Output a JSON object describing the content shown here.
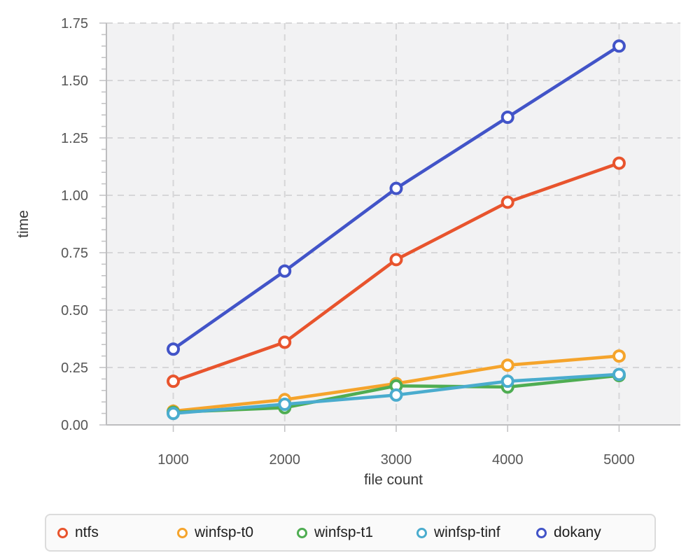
{
  "chart_data": {
    "type": "line",
    "title": "",
    "xlabel": "file count",
    "ylabel": "time",
    "x": [
      1000,
      2000,
      3000,
      4000,
      5000
    ],
    "xtick_labels": [
      "1000",
      "2000",
      "3000",
      "4000",
      "5000"
    ],
    "ytick_labels": [
      "0.00",
      "0.25",
      "0.50",
      "0.75",
      "1.00",
      "1.25",
      "1.50",
      "1.75"
    ],
    "xlim": [
      400,
      5550
    ],
    "ylim": [
      0,
      1.75
    ],
    "y_major_step": 0.25,
    "y_minor_step": 0.05,
    "grid": "dashed",
    "legend_position": "bottom",
    "series": [
      {
        "name": "ntfs",
        "color": "#E8542D",
        "values": [
          0.19,
          0.36,
          0.72,
          0.97,
          1.14
        ]
      },
      {
        "name": "winfsp-t0",
        "color": "#F5A42C",
        "values": [
          0.06,
          0.11,
          0.18,
          0.26,
          0.3
        ]
      },
      {
        "name": "winfsp-t1",
        "color": "#4FAD52",
        "values": [
          0.055,
          0.075,
          0.17,
          0.165,
          0.215
        ]
      },
      {
        "name": "winfsp-tinf",
        "color": "#4AACCE",
        "values": [
          0.05,
          0.09,
          0.13,
          0.19,
          0.22
        ]
      },
      {
        "name": "dokany",
        "color": "#4254C8",
        "values": [
          0.33,
          0.67,
          1.03,
          1.34,
          1.65
        ]
      }
    ]
  },
  "legend": {
    "items": [
      {
        "label": "ntfs",
        "color": "#E8542D"
      },
      {
        "label": "winfsp-t0",
        "color": "#F5A42C"
      },
      {
        "label": "winfsp-t1",
        "color": "#4FAD52"
      },
      {
        "label": "winfsp-tinf",
        "color": "#4AACCE"
      },
      {
        "label": "dokany",
        "color": "#4254C8"
      }
    ]
  },
  "colors": {
    "plot_bg": "#F2F2F3",
    "grid": "#D6D6D8",
    "axis_line": "#BDBDBF",
    "tick": "#C4C4C6",
    "tick_label": "#565656",
    "axis_title": "#3A3A3A",
    "marker_fill": "#FFFFFF",
    "legend_bg": "#FAFAFA",
    "legend_border": "#DCDCDC",
    "legend_text": "#1E1E1E"
  }
}
